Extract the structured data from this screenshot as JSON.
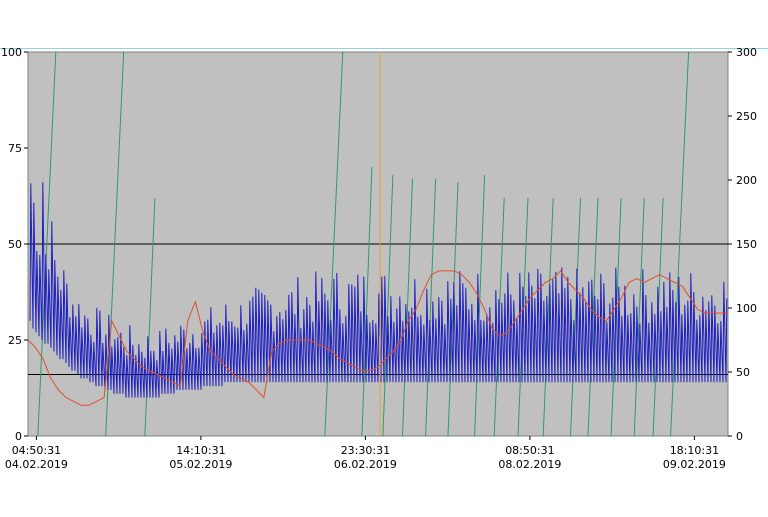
{
  "chart_data": {
    "type": "line",
    "left_axis": {
      "ylim": [
        0,
        100
      ],
      "ticks": [
        "100",
        "75",
        "50",
        "25",
        "0"
      ]
    },
    "right_axis": {
      "ylim": [
        0,
        300
      ],
      "ticks": [
        "300",
        "250",
        "200",
        "150",
        "100",
        "50",
        "0"
      ]
    },
    "x_ticks": [
      {
        "time": "04:50:31",
        "date": "04.02.2019"
      },
      {
        "time": "14:10:31",
        "date": "05.02.2019"
      },
      {
        "time": "23:30:31",
        "date": "06.02.2019"
      },
      {
        "time": "08:50:31",
        "date": "08.02.2019"
      },
      {
        "time": "18:10:31",
        "date": "09.02.2019"
      }
    ],
    "reference_lines": [
      {
        "axis": "left",
        "value": 50,
        "color": "#000000"
      },
      {
        "axis": "left",
        "value": 16,
        "color": "#000000"
      }
    ],
    "cursor": {
      "x_fraction": 0.503,
      "color": "#f0a030"
    },
    "series": [
      {
        "axis": "left",
        "color": "#2020c0",
        "values": [
          30,
          28,
          27,
          26,
          25,
          24,
          24,
          23,
          22,
          21,
          20,
          20,
          19,
          18,
          17,
          17,
          16,
          15,
          15,
          15,
          14,
          14,
          13,
          13,
          13,
          12,
          12,
          12,
          11,
          11,
          11,
          11,
          10,
          10,
          10,
          10,
          10,
          10,
          10,
          10,
          10,
          10,
          10,
          10,
          11,
          11,
          11,
          11,
          11,
          12,
          12,
          12,
          12,
          12,
          12,
          12,
          12,
          12,
          13,
          13,
          13,
          13,
          13,
          13,
          13,
          14,
          14,
          14,
          14,
          14,
          14,
          14,
          14,
          14,
          14,
          14,
          14,
          14,
          14,
          14,
          14,
          14,
          14,
          14,
          14,
          14,
          14,
          14,
          14,
          14,
          14,
          14,
          14,
          14,
          14,
          14,
          14,
          14,
          14,
          14,
          14,
          14,
          14,
          14,
          14,
          14,
          14,
          14,
          14,
          14,
          14,
          14,
          14,
          14,
          14,
          14,
          14,
          14,
          14,
          14,
          14,
          14,
          14,
          14,
          14,
          14,
          14,
          14,
          14,
          14,
          14,
          14,
          14,
          14,
          14,
          14,
          14,
          14,
          14,
          14,
          14,
          14,
          14,
          14,
          14,
          14,
          14,
          14,
          14,
          14,
          14,
          14,
          14,
          14,
          14,
          14,
          14,
          14,
          14,
          14,
          14,
          14,
          14,
          14,
          14,
          14,
          14,
          14,
          14,
          14,
          14,
          14,
          14,
          14,
          14,
          14,
          14,
          14,
          14,
          14,
          14,
          14,
          14,
          14,
          14,
          14,
          14,
          14,
          14,
          14,
          14,
          14,
          14,
          14,
          14,
          14,
          14,
          14,
          14,
          14,
          14,
          14,
          14,
          14,
          14,
          14,
          14,
          14,
          14,
          14,
          14,
          14,
          14,
          14,
          14,
          14,
          14,
          14,
          14,
          14,
          14,
          14,
          14,
          14,
          14,
          14,
          14,
          14,
          14,
          14,
          14,
          14,
          14
        ],
        "peaks": [
          78,
          70,
          65,
          60,
          82,
          55,
          60,
          58,
          52,
          50,
          48,
          46,
          44,
          42,
          40,
          40,
          38,
          38,
          36,
          36,
          35,
          34,
          34,
          33,
          33,
          32,
          32,
          31,
          31,
          30,
          30,
          30,
          29,
          29,
          29,
          28,
          28,
          28,
          28,
          28,
          28,
          28,
          28,
          28,
          29,
          29,
          29,
          30,
          30,
          30,
          31,
          31,
          31,
          32,
          32,
          32,
          33,
          33,
          33,
          34,
          34,
          34,
          35,
          35,
          35,
          36,
          36,
          36,
          37,
          37,
          37,
          38,
          38,
          38,
          38,
          39,
          39,
          39,
          40,
          40,
          40,
          40,
          40,
          41,
          41,
          41,
          41,
          41,
          42,
          42,
          42,
          42,
          42,
          42,
          43,
          43,
          43,
          43,
          43,
          43,
          43,
          44,
          44,
          44,
          44,
          44,
          44,
          44,
          44,
          44,
          44,
          44,
          44,
          44,
          44,
          44,
          44,
          44,
          44,
          44,
          44,
          44,
          44,
          44,
          44,
          44,
          44,
          44,
          44,
          44,
          44,
          44,
          44,
          44,
          44,
          44,
          44,
          44,
          44,
          44,
          44,
          44,
          44,
          44,
          44,
          44,
          44,
          44,
          44,
          44,
          44,
          44,
          44,
          44,
          44,
          44,
          44,
          44,
          44,
          44,
          44,
          44,
          44,
          44,
          44,
          44,
          44,
          44,
          44,
          44,
          44,
          44,
          44,
          44,
          44,
          44,
          44,
          44,
          44,
          44,
          44,
          44,
          44,
          44,
          44,
          44,
          44,
          44,
          44,
          44,
          44,
          44,
          44,
          44,
          44,
          44,
          44,
          44,
          44,
          44,
          44,
          44,
          44,
          44,
          44,
          44,
          44,
          44,
          44,
          44,
          44,
          44,
          44,
          44,
          44,
          44,
          44,
          44,
          44,
          44,
          44,
          44,
          44,
          44,
          44,
          44,
          44,
          44,
          44,
          44,
          44,
          44,
          44,
          44,
          44,
          44,
          44,
          44,
          44,
          44,
          44,
          44
        ]
      },
      {
        "axis": "left",
        "color": "#e0502a",
        "values": [
          25,
          23,
          20,
          15,
          12,
          10,
          9,
          8,
          8,
          9,
          10,
          30,
          26,
          22,
          20,
          18,
          17,
          16,
          15,
          14,
          13,
          30,
          35,
          27,
          22,
          20,
          18,
          16,
          15,
          14,
          12,
          10,
          22,
          24,
          25,
          25,
          25,
          25,
          24,
          23,
          22,
          20,
          19,
          18,
          17,
          17,
          18,
          20,
          22,
          25,
          30,
          33,
          38,
          42,
          43,
          43,
          43,
          42,
          40,
          37,
          33,
          28,
          26,
          27,
          30,
          33,
          36,
          38,
          40,
          41,
          43,
          40,
          38,
          36,
          33,
          31,
          30,
          33,
          36,
          40,
          41,
          40,
          41,
          42,
          41,
          40,
          39,
          36,
          33,
          32,
          32,
          32,
          32
        ]
      },
      {
        "axis": "left",
        "color": "#2e9a6a",
        "sawtooth_starts": [
          0.014,
          0.111,
          0.167,
          0.424,
          0.477,
          0.507,
          0.535,
          0.568,
          0.6,
          0.638,
          0.666,
          0.7,
          0.736,
          0.775,
          0.8,
          0.833,
          0.866,
          0.893,
          0.918
        ],
        "sawtooth_peaks": [
          100,
          100,
          62,
          100,
          70,
          68,
          67,
          67,
          66,
          68,
          62,
          62,
          62,
          62,
          62,
          62,
          62,
          62,
          100
        ]
      }
    ]
  }
}
